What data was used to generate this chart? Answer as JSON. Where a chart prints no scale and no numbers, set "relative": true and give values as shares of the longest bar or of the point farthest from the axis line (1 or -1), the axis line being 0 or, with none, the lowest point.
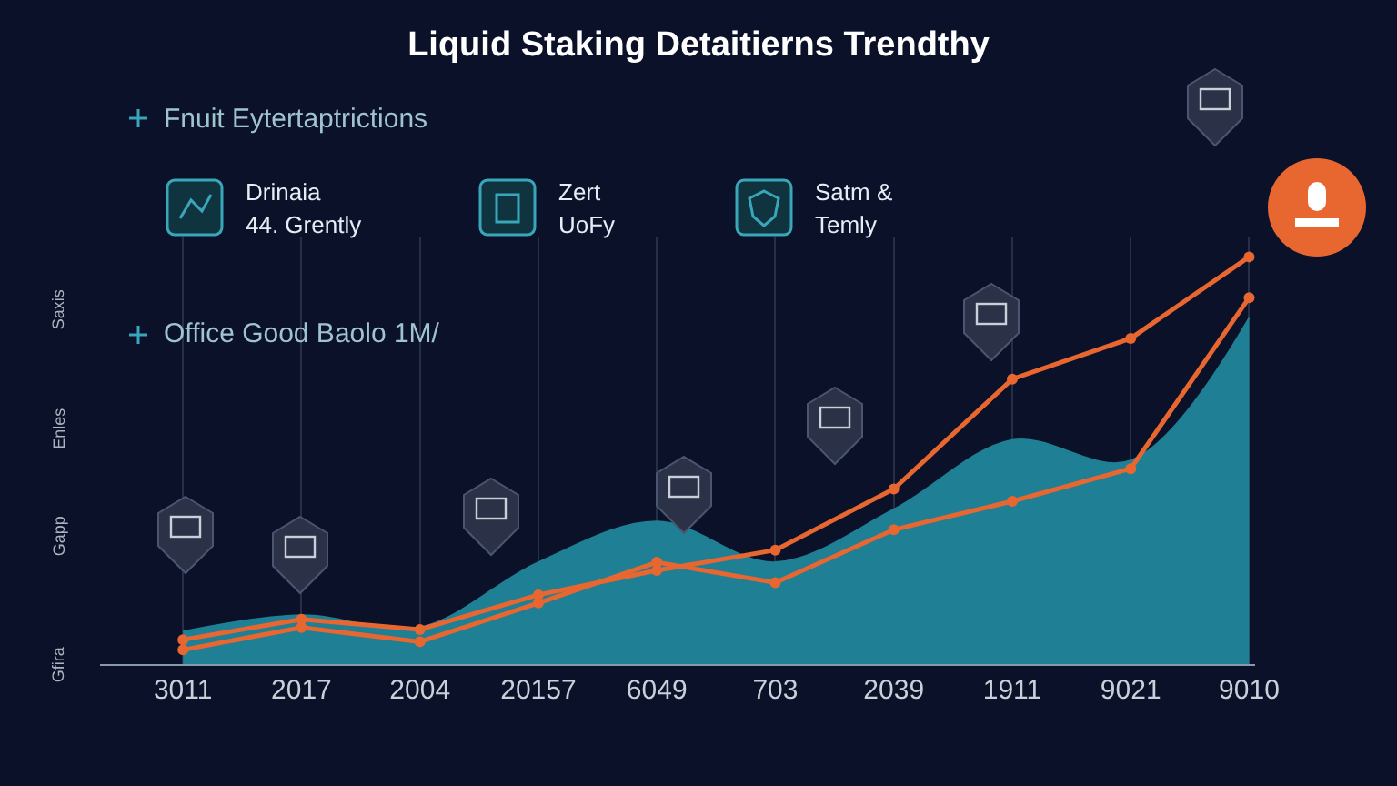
{
  "chart_data": {
    "type": "line",
    "title": "Liquid Staking Detaitierns Trendthy",
    "subtitle": "Fnuit Eytertaptrictions",
    "relative": true,
    "categories": [
      "3011",
      "2017",
      "2004",
      "20157",
      "6049",
      "703",
      "2039",
      "1911",
      "9021",
      "9010"
    ],
    "series": [
      {
        "type": "area",
        "color": "#1f7f95",
        "values": [
          0.08,
          0.12,
          0.09,
          0.25,
          0.35,
          0.25,
          0.38,
          0.55,
          0.5,
          0.85
        ]
      },
      {
        "color": "#e8662f",
        "marker": "circle",
        "values": [
          0.06,
          0.11,
          0.085,
          0.17,
          0.23,
          0.28,
          0.43,
          0.7,
          0.8,
          1
        ]
      },
      {
        "color": "#e8662f",
        "marker": "circle",
        "values": [
          0.035,
          0.09,
          0.055,
          0.15,
          0.25,
          0.2,
          0.33,
          0.4,
          0.48,
          0.9
        ]
      }
    ],
    "annotations": [
      "Drinaia\n44. Grently",
      "Zert\nUoFy",
      "Satm &\nTemly",
      "Office Good Baolo 1M/",
      "Saxis",
      "Enles",
      "Gapp",
      "Gfira"
    ],
    "grid": "x",
    "line_style": "solid"
  }
}
